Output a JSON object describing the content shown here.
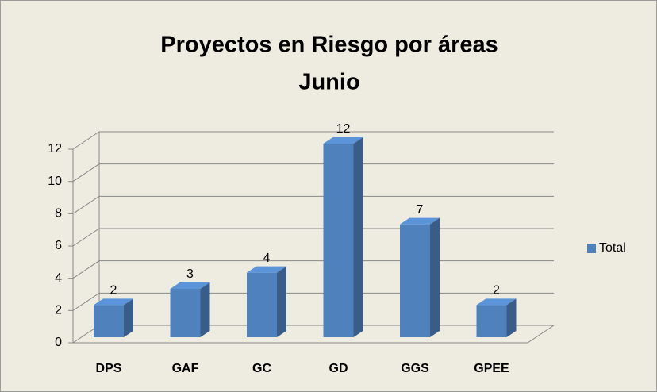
{
  "chart_data": {
    "type": "bar3d",
    "title": "Proyectos en Riesgo por áreas",
    "subtitle": "Junio",
    "categories": [
      "DPS",
      "GAF",
      "GC",
      "GD",
      "GGS",
      "GPEE"
    ],
    "series": [
      {
        "name": "Total",
        "color": "#4f81bd",
        "values": [
          2,
          3,
          4,
          12,
          7,
          2
        ]
      }
    ],
    "ylim": [
      0,
      12
    ],
    "yticks": [
      0,
      2,
      4,
      6,
      8,
      10,
      12
    ],
    "grid": true,
    "legend": "right"
  }
}
